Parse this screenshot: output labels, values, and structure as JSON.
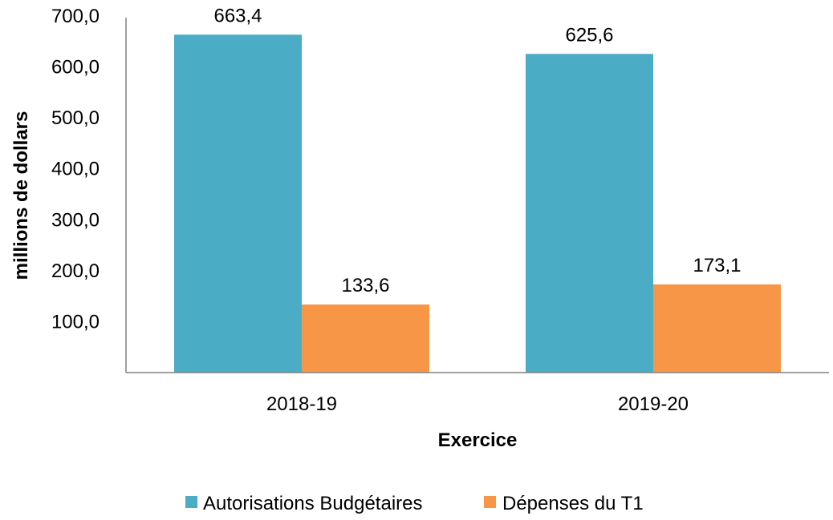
{
  "chart_data": {
    "type": "bar",
    "categories": [
      "2018-19",
      "2019-20"
    ],
    "series": [
      {
        "name": "Autorisations Budgétaires",
        "values": [
          663.4,
          625.6
        ],
        "labels": [
          "663,4",
          "625,6"
        ],
        "color": "#4BACC6"
      },
      {
        "name": "Dépenses du T1",
        "values": [
          133.6,
          173.1
        ],
        "labels": [
          "133,6",
          "173,1"
        ],
        "color": "#F79646"
      }
    ],
    "xlabel": "Exercice",
    "ylabel": "millions de dollars",
    "ylim": [
      0,
      700
    ],
    "yticks": [
      100,
      200,
      300,
      400,
      500,
      600,
      700
    ],
    "ytick_labels": [
      "100,0",
      "200,0",
      "300,0",
      "400,0",
      "500,0",
      "600,0",
      "700,0"
    ],
    "grid": false,
    "legend_position": "bottom"
  }
}
